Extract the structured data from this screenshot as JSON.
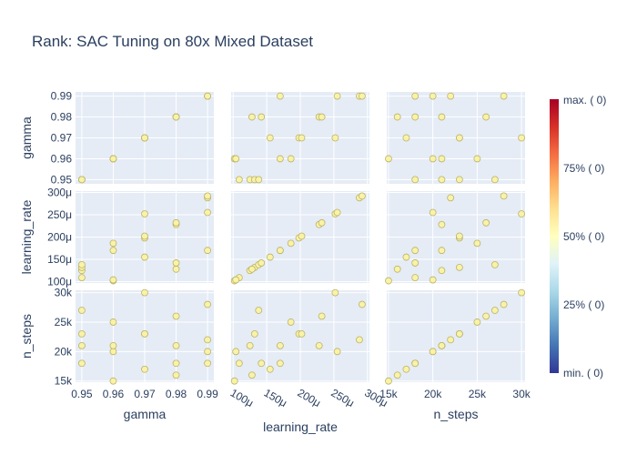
{
  "title": "Rank: SAC Tuning on 80x Mixed Dataset",
  "colors": {
    "panel_bg": "#e5ecf6",
    "grid": "#ffffff",
    "marker_fill": "#f9f2a7",
    "marker_stroke": "#b9b36a",
    "colorscale": [
      "#313695",
      "#4575b4",
      "#74add1",
      "#abd9e9",
      "#e0f3f8",
      "#ffffbf",
      "#fee090",
      "#fdae61",
      "#f46d43",
      "#d73027",
      "#a50026"
    ]
  },
  "colorbar": {
    "labels": [
      "max. (  0)",
      "75% (  0)",
      "50% (  0)",
      "25% (  0)",
      "min. (  0)"
    ]
  },
  "chart_data": {
    "type": "scatter",
    "subtype": "scatter-matrix",
    "title": "Rank: SAC Tuning on 80x Mixed Dataset",
    "dimensions": [
      {
        "name": "gamma",
        "label": "gamma",
        "range": [
          0.948,
          0.992
        ],
        "ticks": [
          0.95,
          0.96,
          0.97,
          0.98,
          0.99
        ],
        "tick_labels_y": [
          "0.95",
          "0.96",
          "0.97",
          "0.98",
          "0.99"
        ],
        "tick_labels_x": [
          "0.95",
          "0.96",
          "0.97",
          "0.98",
          "0.99"
        ]
      },
      {
        "name": "learning_rate",
        "label": "learning_rate",
        "range": [
          9.7e-05,
          0.000303
        ],
        "ticks": [
          0.0001,
          0.00015,
          0.0002,
          0.00025,
          0.0003
        ],
        "tick_labels_y": [
          "100μ",
          "150μ",
          "200μ",
          "250μ",
          "300μ"
        ],
        "tick_labels_x": [
          "100μ",
          "150μ",
          "200μ",
          "250μ",
          "300μ"
        ]
      },
      {
        "name": "n_steps",
        "label": "n_steps",
        "range": [
          14800,
          30400
        ],
        "ticks": [
          15000,
          20000,
          25000,
          30000
        ],
        "tick_labels_y": [
          "15k",
          "20k",
          "25k",
          "30k"
        ],
        "tick_labels_x": [
          "15k",
          "20k",
          "25k",
          "30k"
        ]
      }
    ],
    "points": [
      {
        "gamma": 0.95,
        "learning_rate": 0.000109,
        "n_steps": 18000
      },
      {
        "gamma": 0.95,
        "learning_rate": 0.000125,
        "n_steps": 21000
      },
      {
        "gamma": 0.95,
        "learning_rate": 0.000132,
        "n_steps": 23000
      },
      {
        "gamma": 0.95,
        "learning_rate": 0.000138,
        "n_steps": 27000
      },
      {
        "gamma": 0.96,
        "learning_rate": 0.000102,
        "n_steps": 15000
      },
      {
        "gamma": 0.96,
        "learning_rate": 0.000104,
        "n_steps": 20000
      },
      {
        "gamma": 0.96,
        "learning_rate": 0.00017,
        "n_steps": 21000
      },
      {
        "gamma": 0.96,
        "learning_rate": 0.000186,
        "n_steps": 25000
      },
      {
        "gamma": 0.97,
        "learning_rate": 0.000155,
        "n_steps": 17000
      },
      {
        "gamma": 0.97,
        "learning_rate": 0.000198,
        "n_steps": 23000
      },
      {
        "gamma": 0.97,
        "learning_rate": 0.000202,
        "n_steps": 23000
      },
      {
        "gamma": 0.97,
        "learning_rate": 0.000252,
        "n_steps": 30000
      },
      {
        "gamma": 0.98,
        "learning_rate": 0.000128,
        "n_steps": 16000
      },
      {
        "gamma": 0.98,
        "learning_rate": 0.000142,
        "n_steps": 18000
      },
      {
        "gamma": 0.98,
        "learning_rate": 0.000228,
        "n_steps": 21000
      },
      {
        "gamma": 0.98,
        "learning_rate": 0.000232,
        "n_steps": 26000
      },
      {
        "gamma": 0.99,
        "learning_rate": 0.00017,
        "n_steps": 18000
      },
      {
        "gamma": 0.99,
        "learning_rate": 0.000255,
        "n_steps": 20000
      },
      {
        "gamma": 0.99,
        "learning_rate": 0.000288,
        "n_steps": 22000
      },
      {
        "gamma": 0.99,
        "learning_rate": 0.000292,
        "n_steps": 28000
      }
    ],
    "marker_color_value": "50%",
    "colorbar_labels": [
      "max. (  0)",
      "75% (  0)",
      "50% (  0)",
      "25% (  0)",
      "min. (  0)"
    ],
    "grid": true
  }
}
